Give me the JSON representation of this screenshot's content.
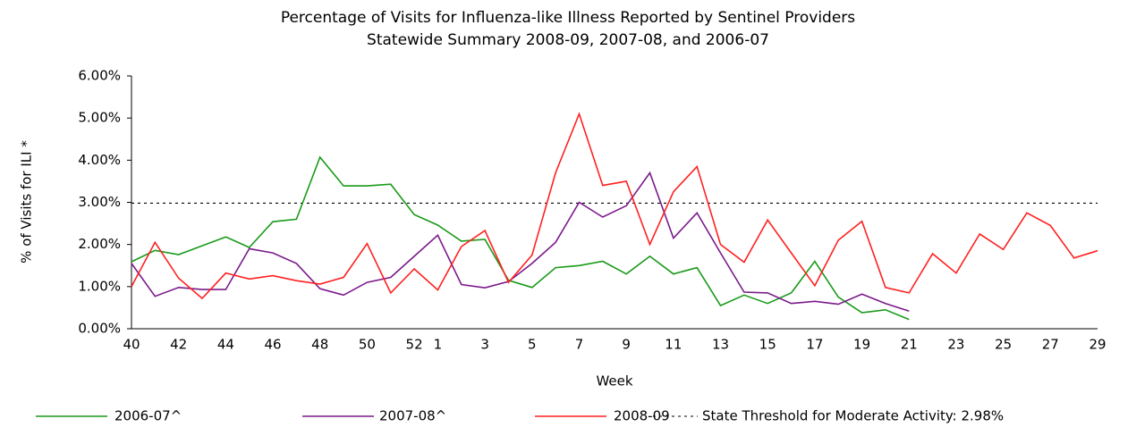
{
  "chart_data": {
    "type": "line",
    "title": "Percentage of Visits for Influenza-like Illness Reported by Sentinel Providers",
    "subtitle": "Statewide Summary 2008-09, 2007-08, and 2006-07",
    "x_label": "Week",
    "y_label": "% of Visits for ILI *",
    "categories": [
      "40",
      null,
      "42",
      null,
      "44",
      null,
      "46",
      null,
      "48",
      null,
      "50",
      null,
      "52",
      "1",
      null,
      "3",
      null,
      "5",
      null,
      "7",
      null,
      "9",
      null,
      "11",
      null,
      "13",
      null,
      "15",
      null,
      "17",
      null,
      "19",
      null,
      "21",
      null,
      "23",
      null,
      "25",
      null,
      "27",
      null,
      "29"
    ],
    "ylim": [
      0,
      6
    ],
    "yticks": [
      {
        "value": 0,
        "label": "0.00%"
      },
      {
        "value": 1,
        "label": "1.00%"
      },
      {
        "value": 2,
        "label": "2.00%"
      },
      {
        "value": 3,
        "label": "3.00%"
      },
      {
        "value": 4,
        "label": "4.00%"
      },
      {
        "value": 5,
        "label": "5.00%"
      },
      {
        "value": 6,
        "label": "6.00%"
      }
    ],
    "series": [
      {
        "name": "2006-07^",
        "color": "#1a9a1a",
        "values": [
          1.59,
          1.86,
          1.76,
          1.97,
          2.18,
          1.93,
          2.54,
          2.6,
          4.07,
          3.39,
          3.39,
          3.43,
          2.71,
          2.46,
          2.08,
          2.12,
          1.15,
          0.98,
          1.45,
          1.5,
          1.6,
          1.3,
          1.72,
          1.3,
          1.45,
          0.55,
          0.8,
          0.6,
          0.85,
          1.6,
          0.75,
          0.38,
          0.45,
          0.22,
          null,
          null,
          null,
          null,
          null,
          null,
          null,
          null
        ]
      },
      {
        "name": "2007-08^",
        "color": "#7a1a8a",
        "values": [
          1.55,
          0.77,
          0.98,
          0.93,
          0.93,
          1.9,
          1.8,
          1.55,
          0.95,
          0.8,
          1.1,
          1.22,
          1.72,
          2.22,
          1.05,
          0.97,
          1.12,
          1.55,
          2.05,
          3.0,
          2.65,
          2.92,
          3.7,
          2.15,
          2.75,
          1.8,
          0.87,
          0.85,
          0.6,
          0.65,
          0.58,
          0.82,
          0.6,
          0.42,
          null,
          null,
          null,
          null,
          null,
          null,
          null,
          null
        ]
      },
      {
        "name": "2008-09",
        "color": "#ff2020",
        "values": [
          1.0,
          2.05,
          1.2,
          0.72,
          1.32,
          1.18,
          1.26,
          1.14,
          1.06,
          1.22,
          2.02,
          0.85,
          1.42,
          0.92,
          1.95,
          2.33,
          1.1,
          1.75,
          3.7,
          5.1,
          3.4,
          3.5,
          2.0,
          3.25,
          3.85,
          2.0,
          1.58,
          2.58,
          1.8,
          1.02,
          2.1,
          2.55,
          0.98,
          0.85,
          1.78,
          1.32,
          2.25,
          1.88,
          2.75,
          2.45,
          1.68,
          1.85
        ]
      }
    ],
    "threshold": {
      "name": "State Threshold for Moderate Activity: 2.98%",
      "value": 2.98,
      "color": "#000000"
    }
  }
}
